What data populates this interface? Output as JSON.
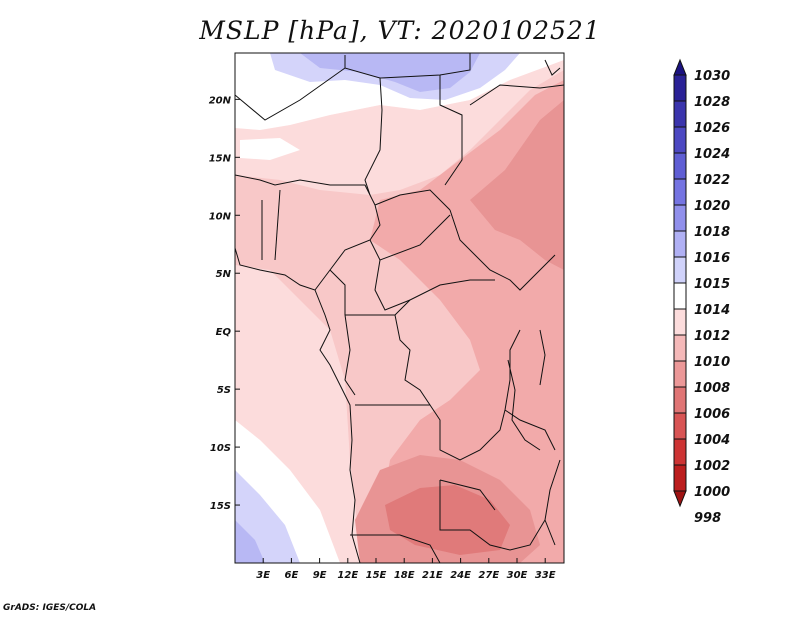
{
  "title": "MSLP [hPa], VT: 2020102521",
  "footer": "GrADS: IGES/COLA",
  "lon_ticks": [
    "3E",
    "6E",
    "9E",
    "12E",
    "15E",
    "18E",
    "21E",
    "24E",
    "27E",
    "30E",
    "33E"
  ],
  "lat_ticks": [
    "20N",
    "15N",
    "10N",
    "5N",
    "EQ",
    "5S",
    "10S",
    "15S"
  ],
  "colorbar": {
    "levels": [
      "1030",
      "1028",
      "1026",
      "1024",
      "1022",
      "1020",
      "1018",
      "1016",
      "1015",
      "1014",
      "1012",
      "1010",
      "1008",
      "1006",
      "1004",
      "1002",
      "1000",
      "998"
    ],
    "colors": [
      "#1b1280",
      "#2a2296",
      "#3a34ac",
      "#4c48c2",
      "#5f5ed4",
      "#7574e2",
      "#9190ec",
      "#b0b0f4",
      "#d0d2fa",
      "#ffffff",
      "#fcdcdc",
      "#f5b9b9",
      "#ec9898",
      "#e07575",
      "#d85454",
      "#cd3434",
      "#bc1e1e",
      "#9f1313"
    ]
  },
  "map": {
    "lon_range": [
      0,
      35
    ],
    "lat_range": [
      -20,
      24
    ],
    "colors": {
      "blue_strong": "#b8b8f4",
      "blue_light": "#d4d4fa",
      "pink_light": "#fcdcdc",
      "pink": "#f8c8c8",
      "salmon": "#f2aaaa",
      "red_light": "#e89494",
      "red": "#e07a7a",
      "red_strong": "#d86464",
      "white": "#ffffff"
    }
  }
}
